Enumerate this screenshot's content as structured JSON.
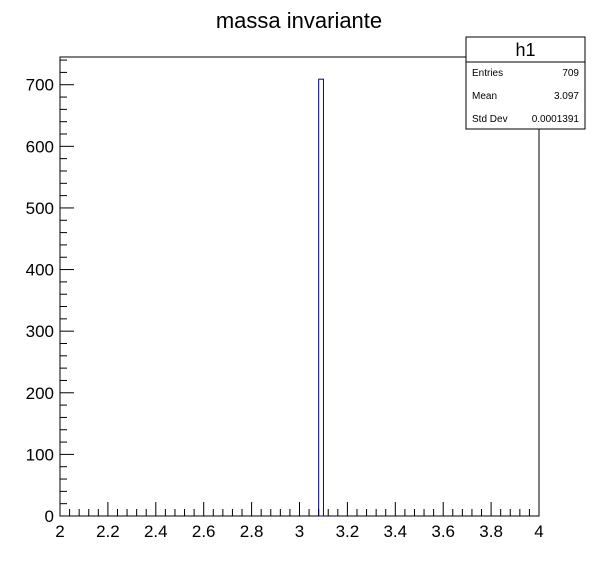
{
  "chart_data": {
    "type": "bar",
    "title": "massa invariante",
    "xlabel": "",
    "ylabel": "",
    "xlim": [
      2,
      4
    ],
    "ylim": [
      0,
      745
    ],
    "grid": false,
    "x_ticks": [
      "2",
      "2.2",
      "2.4",
      "2.6",
      "2.8",
      "3",
      "3.2",
      "3.4",
      "3.6",
      "3.8",
      "4"
    ],
    "y_ticks": [
      "0",
      "100",
      "200",
      "300",
      "400",
      "500",
      "600",
      "700"
    ],
    "bin_width": 0.02,
    "series": [
      {
        "bins": [
          {
            "x_low": 3.08,
            "x_high": 3.1,
            "value": 709
          }
        ],
        "color": "#000099"
      }
    ],
    "stats_box": {
      "position": "top-right",
      "name": "h1",
      "rows": [
        {
          "label": "Entries",
          "value": "709"
        },
        {
          "label": "Mean",
          "value": "3.097"
        },
        {
          "label": "Std Dev",
          "value": "0.0001391"
        }
      ]
    }
  }
}
